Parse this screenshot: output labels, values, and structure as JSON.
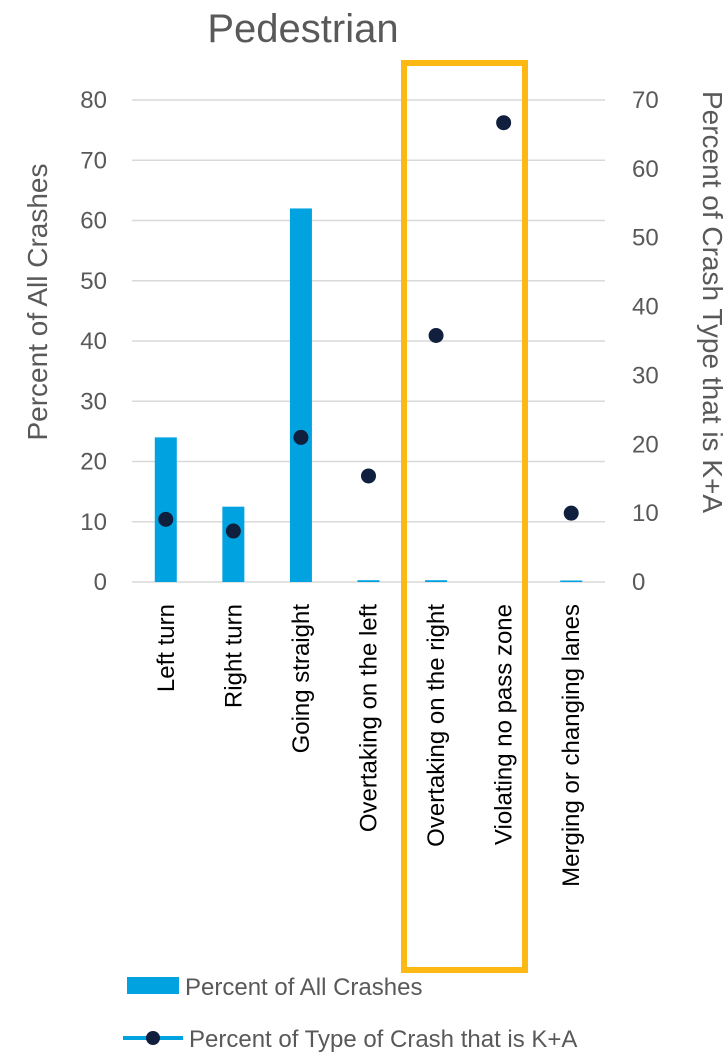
{
  "chart_data": {
    "type": "bar",
    "title": "Pedestrian",
    "categories": [
      "Left turn",
      "Right turn",
      "Going straight",
      "Overtaking on the left",
      "Overtaking on the right",
      "Violating no pass zone",
      "Merging or changing lanes"
    ],
    "series": [
      {
        "name": "Percent of All Crashes",
        "type": "bar",
        "axis": "left",
        "color": "#00A2E0",
        "values": [
          24,
          12.5,
          62,
          0.3,
          0.3,
          0,
          0.2
        ]
      },
      {
        "name": "Percent of Type of Crash that is K+A",
        "type": "scatter",
        "axis": "right",
        "color": "#0F1F3D",
        "values": [
          9.1,
          7.4,
          21,
          15.4,
          35.8,
          66.7,
          10
        ]
      }
    ],
    "ylabel": "Percent of All Crashes",
    "y2label": "Percent of Crash Type that is K+A",
    "ylim": [
      0,
      80
    ],
    "y2lim": [
      0,
      70
    ],
    "yticks": [
      "0",
      "10",
      "20",
      "30",
      "40",
      "50",
      "60",
      "70",
      "80"
    ],
    "y2ticks": [
      "0",
      "10",
      "20",
      "30",
      "40",
      "50",
      "60",
      "70"
    ],
    "grid": true,
    "highlight": {
      "categories": [
        "Overtaking on the right",
        "Violating no pass zone"
      ],
      "color": "#FDB913"
    },
    "legend_position": "bottom",
    "gridline_color": "#D9D9D9"
  }
}
